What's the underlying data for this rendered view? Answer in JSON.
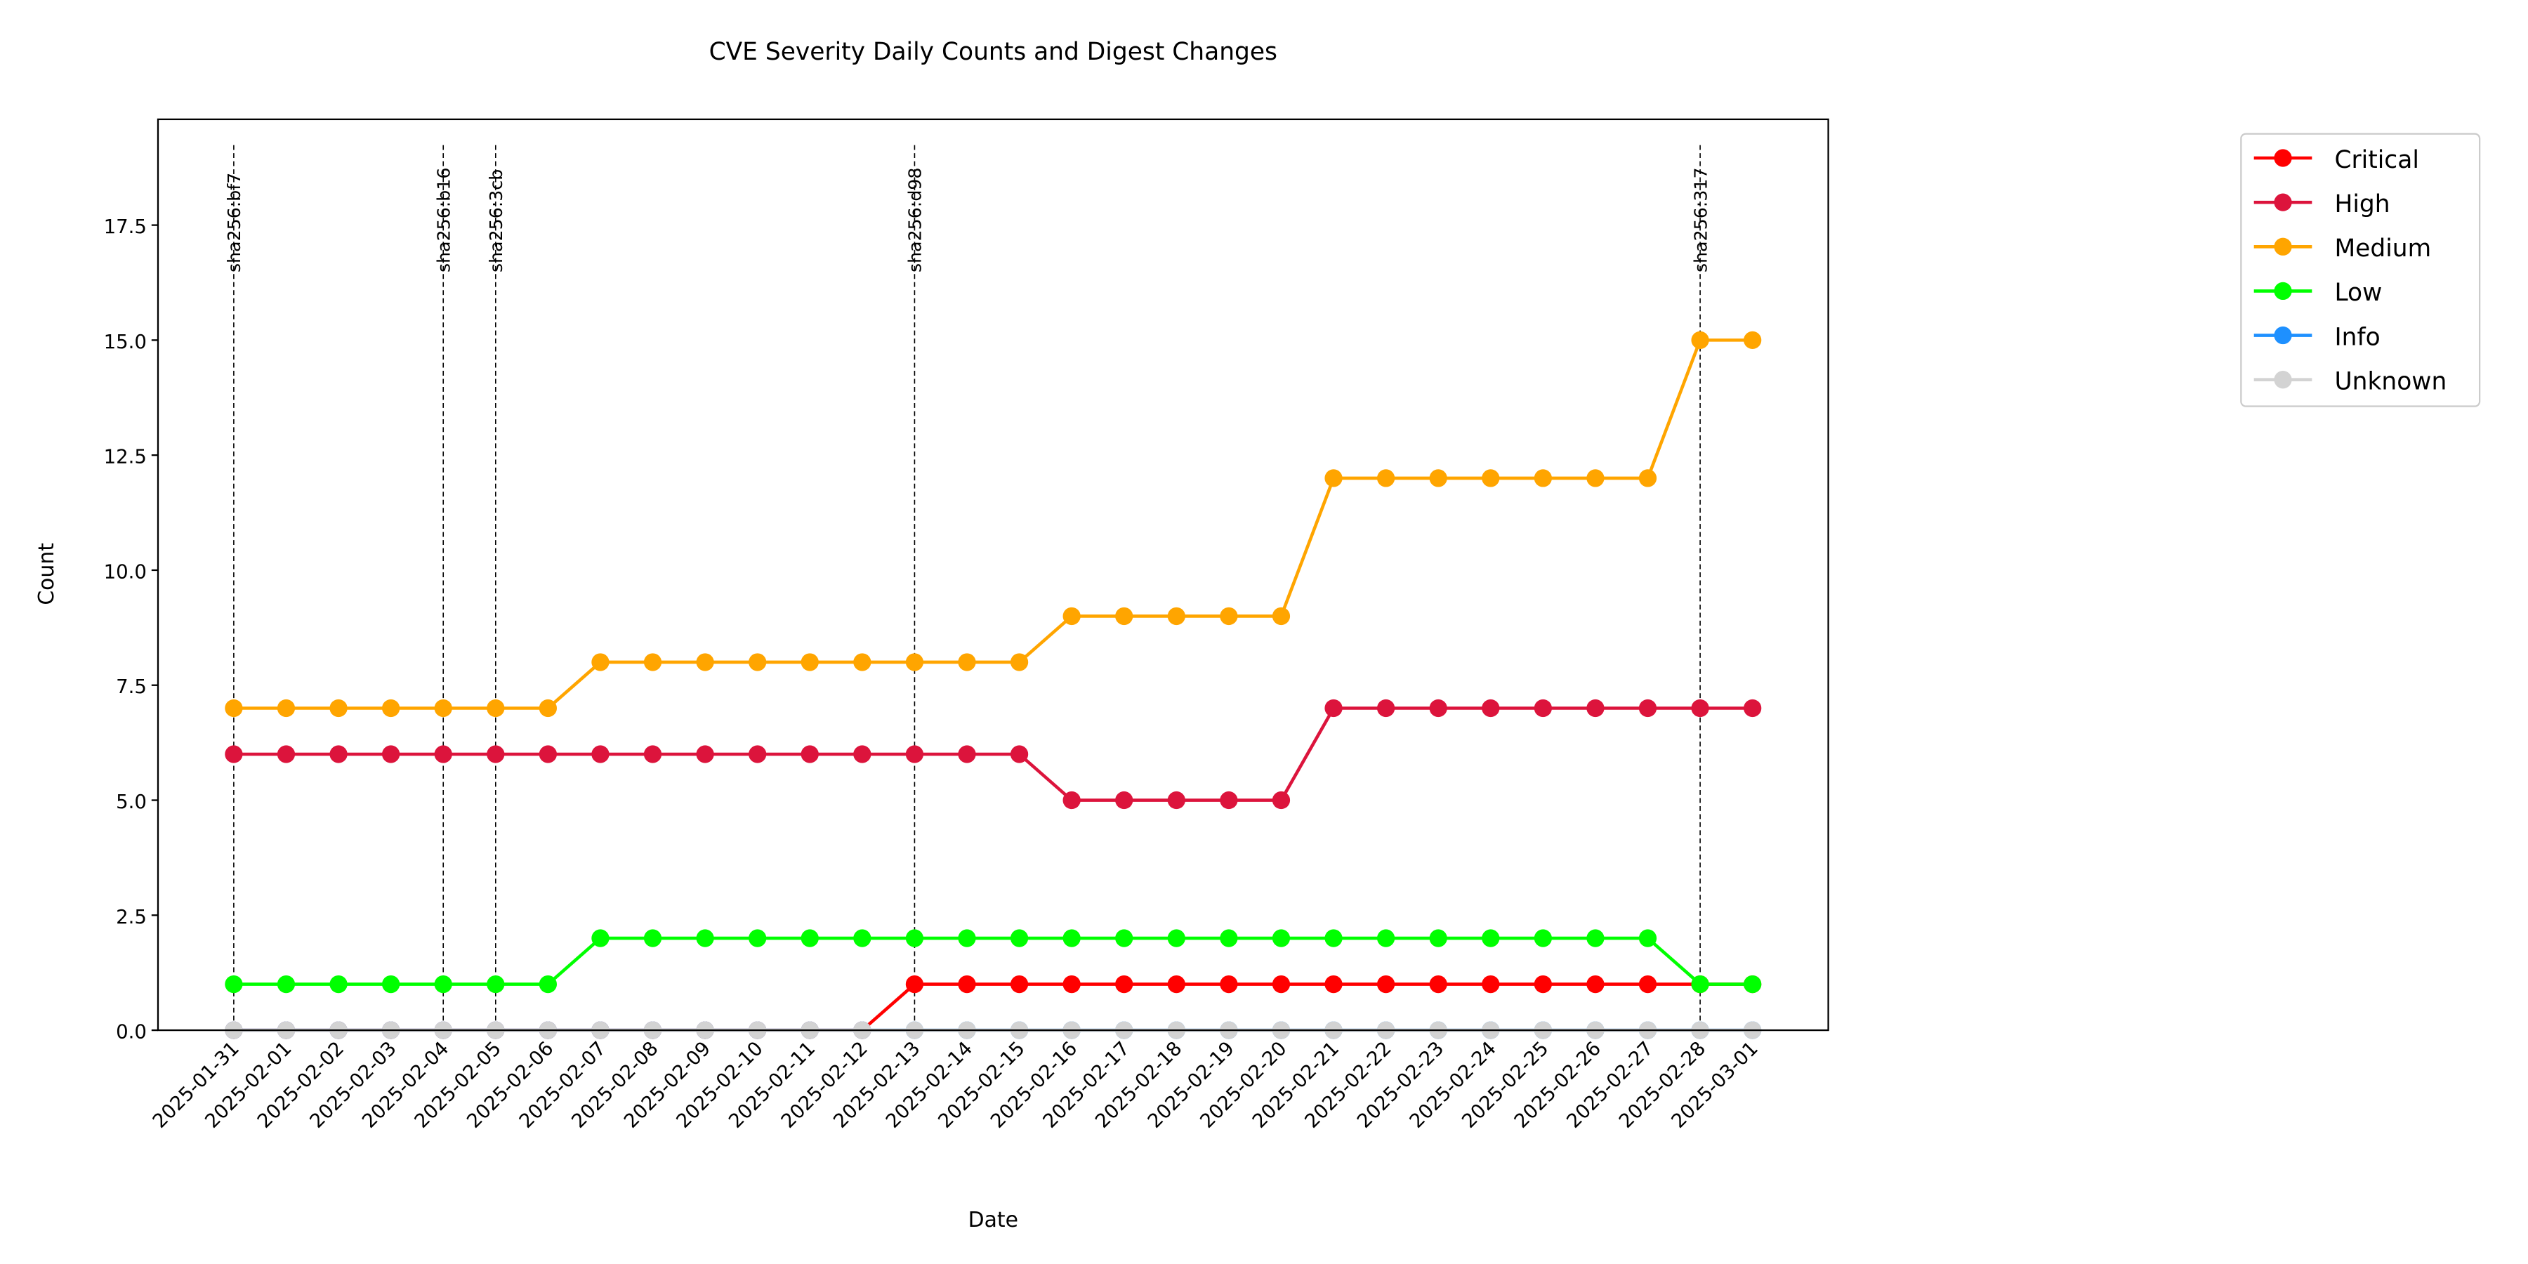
{
  "chart_data": {
    "type": "line",
    "title": "CVE Severity Daily Counts and Digest Changes",
    "x_label": "Date",
    "y_label": "Count",
    "categories": [
      "2025-01-31",
      "2025-02-01",
      "2025-02-02",
      "2025-02-03",
      "2025-02-04",
      "2025-02-05",
      "2025-02-06",
      "2025-02-07",
      "2025-02-08",
      "2025-02-09",
      "2025-02-10",
      "2025-02-11",
      "2025-02-12",
      "2025-02-13",
      "2025-02-14",
      "2025-02-15",
      "2025-02-16",
      "2025-02-17",
      "2025-02-18",
      "2025-02-19",
      "2025-02-20",
      "2025-02-21",
      "2025-02-22",
      "2025-02-23",
      "2025-02-24",
      "2025-02-25",
      "2025-02-26",
      "2025-02-27",
      "2025-02-28",
      "2025-03-01"
    ],
    "series": [
      {
        "name": "Critical",
        "color": "#ff0000",
        "values": [
          0,
          0,
          0,
          0,
          0,
          0,
          0,
          0,
          0,
          0,
          0,
          0,
          0,
          1,
          1,
          1,
          1,
          1,
          1,
          1,
          1,
          1,
          1,
          1,
          1,
          1,
          1,
          1,
          1,
          1
        ]
      },
      {
        "name": "High",
        "color": "#dc143c",
        "values": [
          6,
          6,
          6,
          6,
          6,
          6,
          6,
          6,
          6,
          6,
          6,
          6,
          6,
          6,
          6,
          6,
          5,
          5,
          5,
          5,
          5,
          7,
          7,
          7,
          7,
          7,
          7,
          7,
          7,
          7
        ]
      },
      {
        "name": "Medium",
        "color": "#ffa500",
        "values": [
          7,
          7,
          7,
          7,
          7,
          7,
          7,
          8,
          8,
          8,
          8,
          8,
          8,
          8,
          8,
          8,
          9,
          9,
          9,
          9,
          9,
          12,
          12,
          12,
          12,
          12,
          12,
          12,
          15,
          15
        ]
      },
      {
        "name": "Low",
        "color": "#00ff00",
        "values": [
          1,
          1,
          1,
          1,
          1,
          1,
          1,
          2,
          2,
          2,
          2,
          2,
          2,
          2,
          2,
          2,
          2,
          2,
          2,
          2,
          2,
          2,
          2,
          2,
          2,
          2,
          2,
          2,
          1,
          1
        ]
      },
      {
        "name": "Info",
        "color": "#1e90ff",
        "values": [
          0,
          0,
          0,
          0,
          0,
          0,
          0,
          0,
          0,
          0,
          0,
          0,
          0,
          0,
          0,
          0,
          0,
          0,
          0,
          0,
          0,
          0,
          0,
          0,
          0,
          0,
          0,
          0,
          0,
          0
        ]
      },
      {
        "name": "Unknown",
        "color": "#d3d3d3",
        "values": [
          0,
          0,
          0,
          0,
          0,
          0,
          0,
          0,
          0,
          0,
          0,
          0,
          0,
          0,
          0,
          0,
          0,
          0,
          0,
          0,
          0,
          0,
          0,
          0,
          0,
          0,
          0,
          0,
          0,
          0
        ]
      }
    ],
    "digest_changes": [
      {
        "x": "2025-01-31",
        "label": "sha256:bf7"
      },
      {
        "x": "2025-02-04",
        "label": "sha256:b16"
      },
      {
        "x": "2025-02-05",
        "label": "sha256:3cb"
      },
      {
        "x": "2025-02-13",
        "label": "sha256:d98"
      },
      {
        "x": "2025-02-28",
        "label": "sha256:317"
      }
    ],
    "ylim": [
      0,
      19.8
    ],
    "yticks": [
      {
        "value": 0,
        "label": "0.0"
      },
      2.5,
      {
        "value": 5,
        "label": "5.0"
      },
      7.5,
      {
        "value": 10,
        "label": "10.0"
      },
      12.5,
      {
        "value": 15,
        "label": "15.0"
      },
      17.5
    ],
    "grid": false,
    "legend": "outside right"
  }
}
